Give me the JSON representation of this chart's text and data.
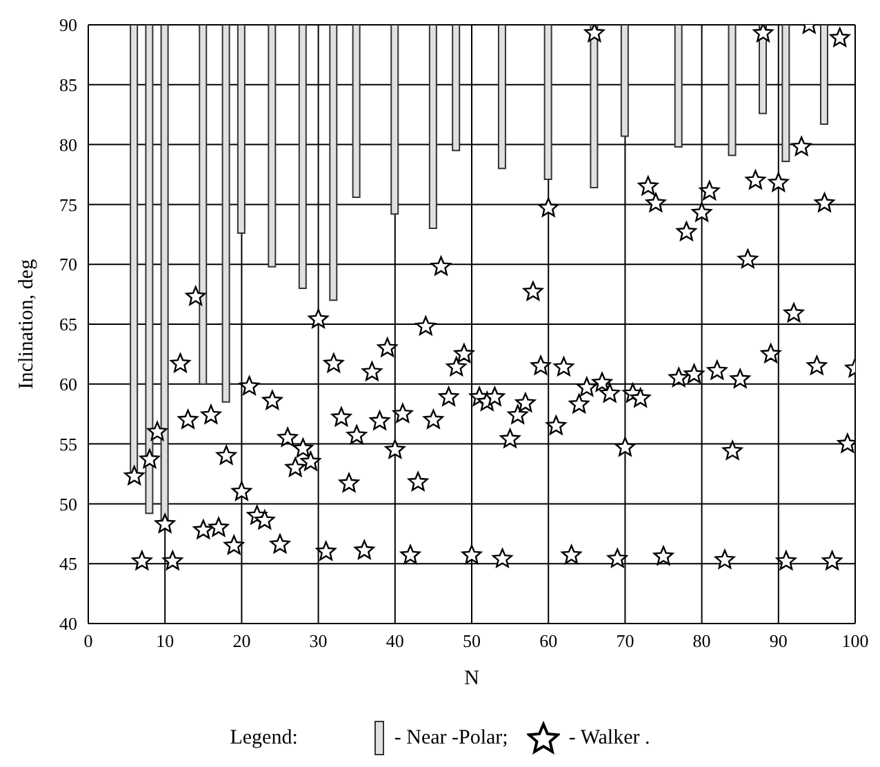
{
  "chart_data": {
    "type": "bar",
    "xlabel": "N",
    "ylabel": "Inclination, deg",
    "legend_title": "Legend:",
    "legend": "bottom",
    "grid": true,
    "xlim": [
      0,
      100
    ],
    "xticks": [
      0,
      10,
      20,
      30,
      40,
      50,
      60,
      70,
      80,
      90,
      100
    ],
    "ylim": [
      40,
      90
    ],
    "yticks": [
      40,
      45,
      50,
      55,
      60,
      65,
      70,
      75,
      80,
      85,
      90
    ],
    "series": [
      {
        "name": "- Near -Polar;",
        "color": "#e0e0e0",
        "x": [
          6,
          8,
          10,
          15,
          18,
          20,
          24,
          28,
          32,
          35,
          40,
          45,
          48,
          54,
          60,
          66,
          70,
          77,
          84,
          88,
          91,
          96
        ],
        "base": [
          52.2,
          49.2,
          48.1,
          60.0,
          58.5,
          72.6,
          69.8,
          68.0,
          67.0,
          75.6,
          74.2,
          73.0,
          79.5,
          78.0,
          77.1,
          76.4,
          80.7,
          79.8,
          79.1,
          82.6,
          78.6,
          81.7
        ],
        "values": [
          37.8,
          40.8,
          41.9,
          30.0,
          31.5,
          17.4,
          20.2,
          22.0,
          23.0,
          14.4,
          15.8,
          17.0,
          10.5,
          12.0,
          12.9,
          13.6,
          9.3,
          10.2,
          10.9,
          7.4,
          11.4,
          8.3
        ]
      },
      {
        "name": "- Walker .",
        "type": "scatter",
        "marker": "star",
        "color": "#000000",
        "x": [
          6,
          7,
          8,
          9,
          10,
          11,
          12,
          13,
          14,
          15,
          16,
          17,
          18,
          19,
          20,
          21,
          22,
          23,
          24,
          25,
          26,
          27,
          28,
          29,
          30,
          31,
          32,
          33,
          34,
          35,
          36,
          37,
          38,
          39,
          40,
          41,
          42,
          43,
          44,
          45,
          46,
          47,
          48,
          49,
          50,
          51,
          52,
          53,
          54,
          55,
          56,
          57,
          58,
          59,
          60,
          61,
          62,
          63,
          64,
          65,
          66,
          67,
          68,
          69,
          70,
          71,
          72,
          73,
          74,
          75,
          77,
          78,
          79,
          80,
          81,
          82,
          83,
          84,
          85,
          86,
          87,
          88,
          89,
          90,
          91,
          92,
          93,
          94,
          95,
          96,
          97,
          98,
          99,
          100
        ],
        "values": [
          52.3,
          45.2,
          53.7,
          56.0,
          48.3,
          45.2,
          61.7,
          57.0,
          67.3,
          47.8,
          57.4,
          48.0,
          54.0,
          46.5,
          51.0,
          59.8,
          49.0,
          48.6,
          58.6,
          46.6,
          55.5,
          53.0,
          54.6,
          53.5,
          65.4,
          46.0,
          61.7,
          57.2,
          51.7,
          55.7,
          46.1,
          61.0,
          56.9,
          63.0,
          54.5,
          57.5,
          45.7,
          51.8,
          64.8,
          57.0,
          69.8,
          58.9,
          61.4,
          62.5,
          45.7,
          58.9,
          58.5,
          58.9,
          45.4,
          55.4,
          57.4,
          58.4,
          67.7,
          61.5,
          74.7,
          56.5,
          61.4,
          45.7,
          58.3,
          59.7,
          89.3,
          60.1,
          59.2,
          45.4,
          54.7,
          59.2,
          58.8,
          76.5,
          75.1,
          45.6,
          60.5,
          72.7,
          60.8,
          74.3,
          76.1,
          61.1,
          45.3,
          54.4,
          60.4,
          70.4,
          77.0,
          89.3,
          62.5,
          76.8,
          45.2,
          65.9,
          79.8,
          90.0,
          61.5,
          75.1,
          45.2,
          88.9,
          55.0,
          61.3
        ]
      }
    ]
  }
}
